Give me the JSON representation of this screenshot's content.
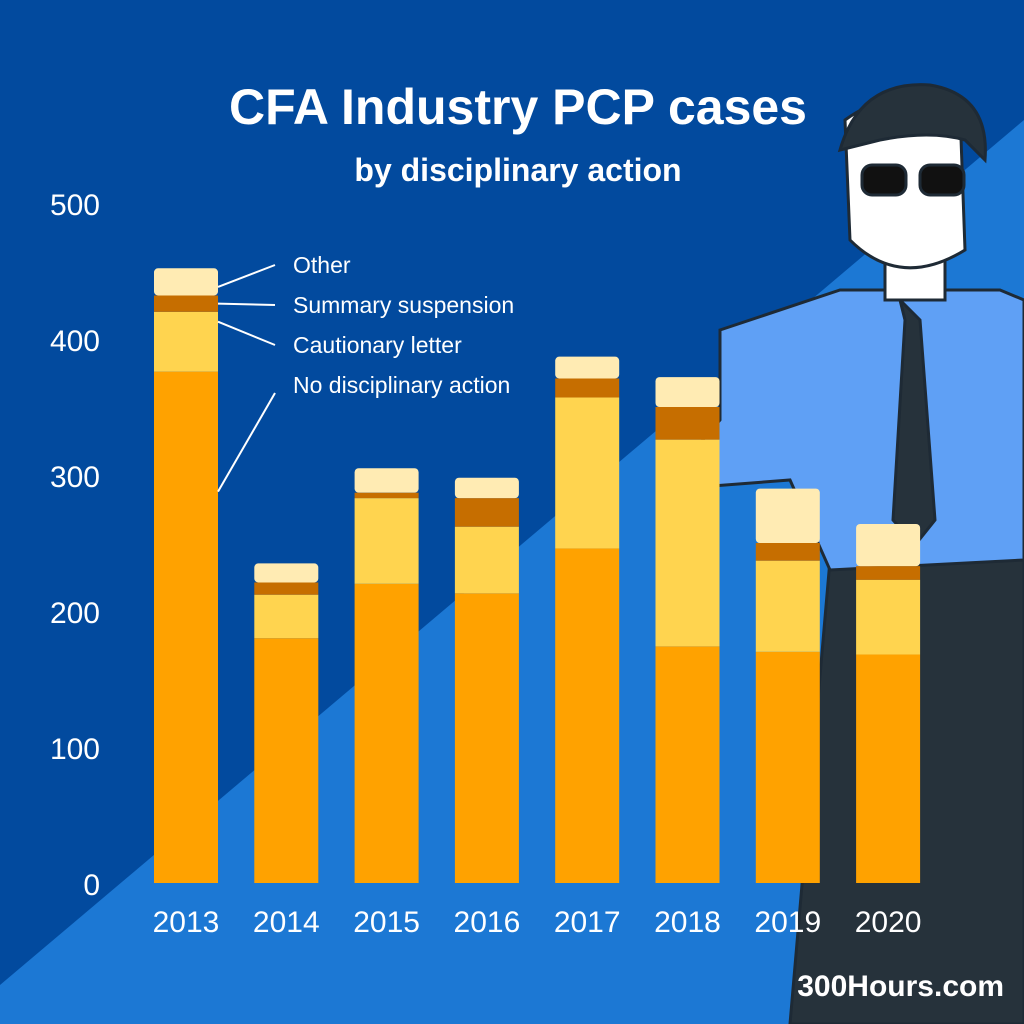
{
  "brand": "300Hours.com",
  "colors": {
    "bg_dark": "#024a9e",
    "bg_light": "#1c78d4",
    "no_disciplinary_action": "#ffa200",
    "cautionary_letter": "#ffd44f",
    "summary_suspension": "#c66e00",
    "other": "#ffebb3"
  },
  "chart_data": {
    "type": "bar",
    "stacked": true,
    "title": "CFA Industry PCP cases",
    "subtitle": "by disciplinary action",
    "xlabel": "",
    "ylabel": "",
    "ylim": [
      0,
      500
    ],
    "yticks": [
      "0",
      "100",
      "200",
      "300",
      "400",
      "500"
    ],
    "grid": false,
    "legend": "annotations on first bar",
    "categories": [
      "2013",
      "2014",
      "2015",
      "2016",
      "2017",
      "2018",
      "2019",
      "2020"
    ],
    "series": [
      {
        "name": "No disciplinary action",
        "values": [
          376,
          180,
          220,
          213,
          246,
          174,
          170,
          168
        ]
      },
      {
        "name": "Cautionary letter",
        "values": [
          44,
          32,
          63,
          49,
          111,
          152,
          67,
          55
        ]
      },
      {
        "name": "Summary suspension",
        "values": [
          12,
          9,
          4,
          21,
          14,
          24,
          13,
          10
        ]
      },
      {
        "name": "Other",
        "values": [
          20,
          14,
          18,
          15,
          16,
          22,
          40,
          31
        ]
      }
    ]
  }
}
